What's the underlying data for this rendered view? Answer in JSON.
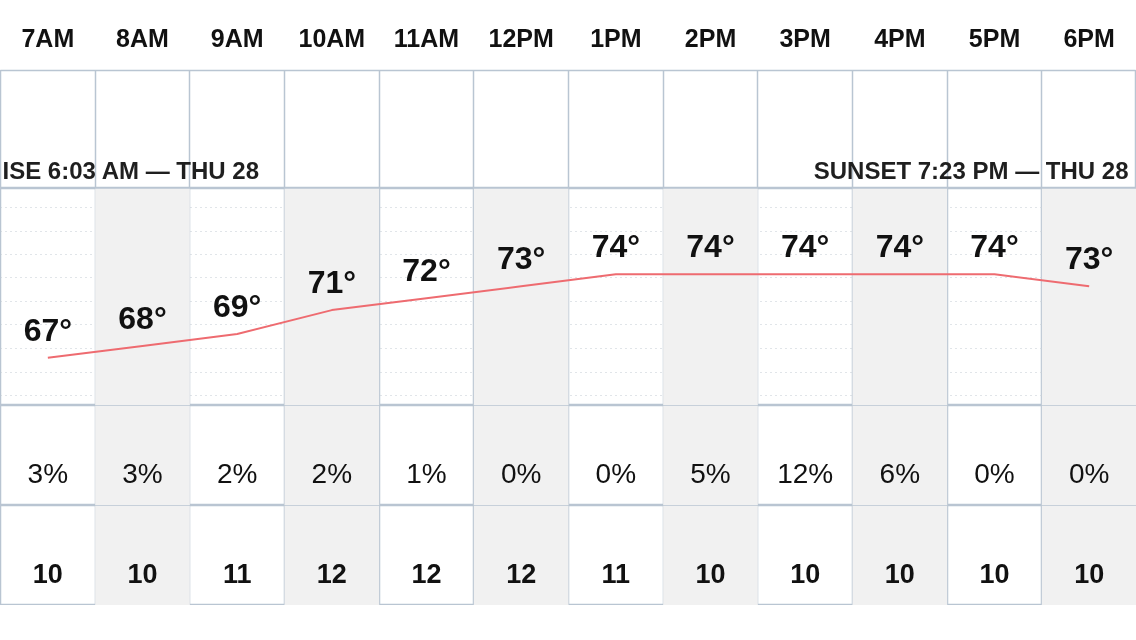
{
  "chart_data": [
    {
      "type": "line",
      "categories": [
        "7AM",
        "8AM",
        "9AM",
        "10AM",
        "11AM",
        "12PM",
        "1PM",
        "2PM",
        "3PM",
        "4PM",
        "5PM",
        "6PM"
      ],
      "values": [
        67,
        68,
        69,
        71,
        72,
        73,
        74,
        74,
        74,
        74,
        74,
        73
      ],
      "value_labels": [
        "67°",
        "68°",
        "69°",
        "71°",
        "72°",
        "73°",
        "74°",
        "74°",
        "74°",
        "74°",
        "74°",
        "73°"
      ],
      "color": "#ee6b70",
      "ylim": [
        63,
        81.2
      ],
      "yticks": [
        {
          "value": 63.8,
          "label": null
        },
        {
          "value": 65.8,
          "label": null
        },
        {
          "value": 67.8,
          "label": null
        },
        {
          "value": 69.8,
          "label": null
        },
        {
          "value": 71.7,
          "label": null
        },
        {
          "value": 73.7,
          "label": null
        },
        {
          "value": 75.7,
          "label": null
        },
        {
          "value": 77.6,
          "label": null
        },
        {
          "value": 79.6,
          "label": null
        }
      ],
      "grid": true,
      "tick_labels": "x",
      "annotations": [
        "ISE 6:03 AM — THU 28",
        "SUNSET 7:23 PM — THU 28"
      ],
      "bands": [
        {
          "axis": "x",
          "from": "8AM",
          "to": "8AM",
          "color": "#f1f1f1"
        },
        {
          "axis": "x",
          "from": "10AM",
          "to": "10AM",
          "color": "#f1f1f1"
        },
        {
          "axis": "x",
          "from": "12PM",
          "to": "12PM",
          "color": "#f1f1f1"
        },
        {
          "axis": "x",
          "from": "2PM",
          "to": "2PM",
          "color": "#f1f1f1"
        },
        {
          "axis": "x",
          "from": "4PM",
          "to": "4PM",
          "color": "#f1f1f1"
        },
        {
          "axis": "x",
          "from": "6PM",
          "to": "6PM",
          "color": "#f1f1f1"
        }
      ]
    },
    {
      "type": "other",
      "values": [
        3,
        3,
        2,
        2,
        1,
        0,
        0,
        5,
        12,
        6,
        0,
        0
      ],
      "value_labels": [
        "3%",
        "3%",
        "2%",
        "2%",
        "1%",
        "0%",
        "0%",
        "5%",
        "12%",
        "6%",
        "0%",
        "0%"
      ]
    },
    {
      "type": "other",
      "values": [
        10,
        10,
        11,
        12,
        12,
        12,
        11,
        10,
        10,
        10,
        10,
        10
      ],
      "data_labels": true
    }
  ]
}
